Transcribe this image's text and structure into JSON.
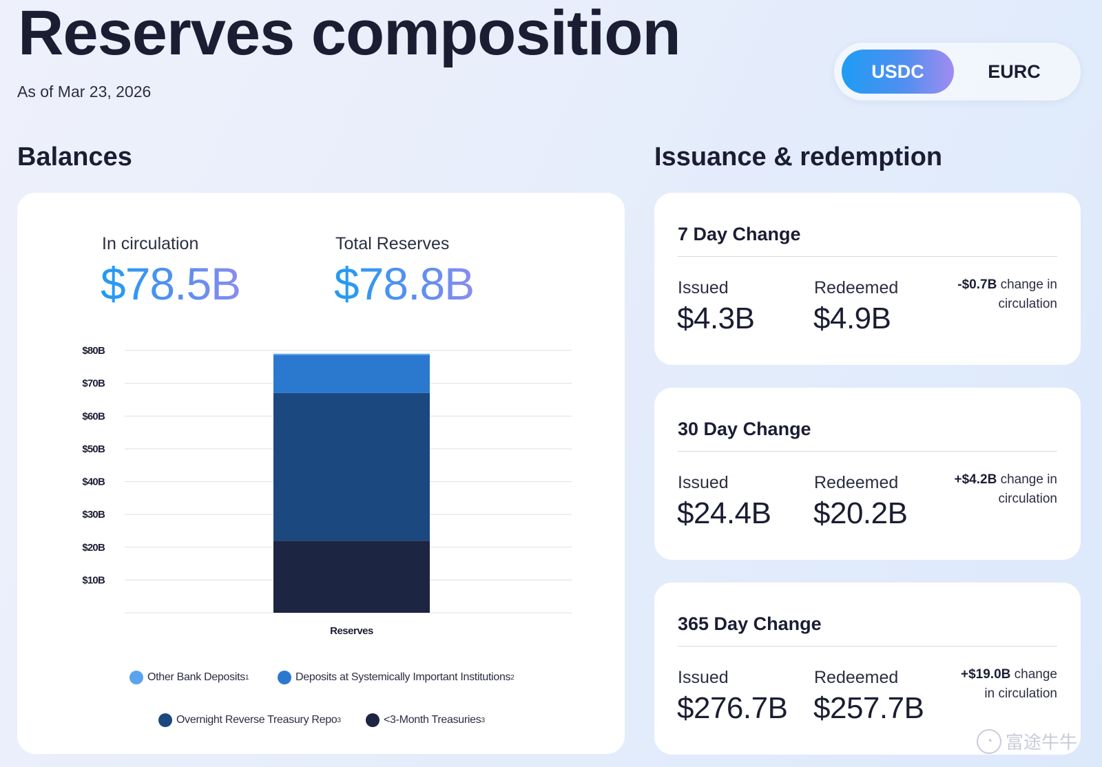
{
  "header": {
    "title": "Reserves composition",
    "as_of": "As of Mar 23, 2026"
  },
  "toggle": {
    "options": [
      "USDC",
      "EURC"
    ],
    "selected": "USDC"
  },
  "balances": {
    "section_title": "Balances",
    "in_circulation_label": "In circulation",
    "in_circulation_value": "$78.5B",
    "total_reserves_label": "Total Reserves",
    "total_reserves_value": "$78.8B"
  },
  "issuance": {
    "section_title": "Issuance & redemption",
    "cards": [
      {
        "title": "7 Day Change",
        "issued_label": "Issued",
        "issued_value": "$4.3B",
        "redeemed_label": "Redeemed",
        "redeemed_value": "$4.9B",
        "change_amount": "-$0.7B",
        "change_text": "change in circulation"
      },
      {
        "title": "30 Day Change",
        "issued_label": "Issued",
        "issued_value": "$24.4B",
        "redeemed_label": "Redeemed",
        "redeemed_value": "$20.2B",
        "change_amount": "+$4.2B",
        "change_text": "change in circulation"
      },
      {
        "title": "365 Day Change",
        "issued_label": "Issued",
        "issued_value": "$276.7B",
        "redeemed_label": "Redeemed",
        "redeemed_value": "$257.7B",
        "change_amount": "+$19.0B",
        "change_text": "change in circulation"
      }
    ]
  },
  "chart_data": {
    "type": "bar",
    "stacked": true,
    "categories": [
      "Reserves"
    ],
    "series": [
      {
        "name": "<3-Month Treasuries",
        "sup": "3",
        "values": [
          22
        ],
        "color": "#1c2542"
      },
      {
        "name": "Overnight Reverse Treasury Repo",
        "sup": "3",
        "values": [
          45
        ],
        "color": "#1c4880"
      },
      {
        "name": "Deposits at Systemically Important Institutions",
        "sup": "2",
        "values": [
          11.6
        ],
        "color": "#2b78cf"
      },
      {
        "name": "Other Bank Deposits",
        "sup": "1",
        "values": [
          0.4
        ],
        "color": "#5aa3ee"
      }
    ],
    "y_ticks": [
      "$10B",
      "$20B",
      "$30B",
      "$40B",
      "$50B",
      "$60B",
      "$70B",
      "$80B"
    ],
    "y_tick_values": [
      10,
      20,
      30,
      40,
      50,
      60,
      70,
      80
    ],
    "ylim": [
      0,
      80
    ],
    "xlabel": "Reserves",
    "grid": true,
    "legend_order": [
      "Other Bank Deposits",
      "Deposits at Systemically Important Institutions",
      "Overnight Reverse Treasury Repo",
      "<3-Month Treasuries"
    ],
    "legend_placement": "bottom"
  },
  "watermark": {
    "text": "富途牛牛"
  }
}
